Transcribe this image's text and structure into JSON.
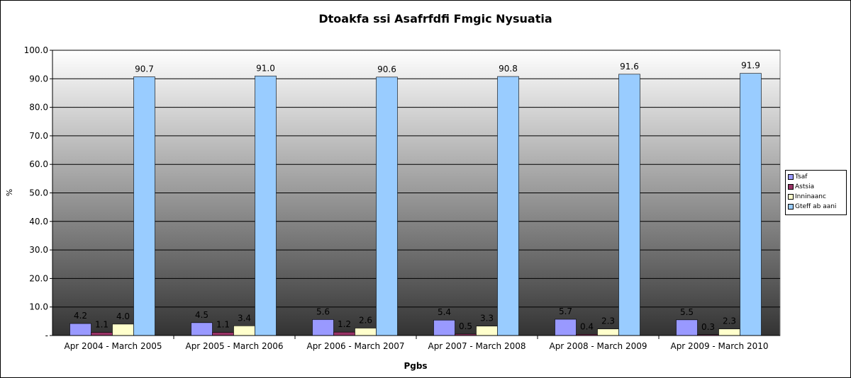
{
  "chart_data": {
    "type": "bar",
    "title": "Dtoakfa ssi Asafrfdfi Fmgic Nysuatia",
    "xlabel": "Pgbs",
    "ylabel": "%",
    "ylim": [
      0,
      100
    ],
    "yticks": [
      "-",
      "10.0",
      "20.0",
      "30.0",
      "40.0",
      "50.0",
      "60.0",
      "70.0",
      "80.0",
      "90.0",
      "100.0"
    ],
    "grid": true,
    "legend_position": "right",
    "categories": [
      "Apr 2004 - March 2005",
      "Apr 2005 - March 2006",
      "Apr 2006 - March 2007",
      "Apr 2007 - March 2008",
      "Apr 2008 - March 2009",
      "Apr 2009 - March 2010"
    ],
    "series": [
      {
        "name": "Tsaf",
        "color": "#9999ff",
        "values": [
          4.2,
          4.5,
          5.6,
          5.4,
          5.7,
          5.5
        ],
        "labels": [
          "4.2",
          "4.5",
          "5.6",
          "5.4",
          "5.7",
          "5.5"
        ]
      },
      {
        "name": "Astsia",
        "color": "#993366",
        "values": [
          1.1,
          1.1,
          1.2,
          0.5,
          0.4,
          0.3
        ],
        "labels": [
          "1.1",
          "1.1",
          "1.2",
          "0.5",
          "0.4",
          "0.3"
        ]
      },
      {
        "name": "Inninaanc",
        "color": "#ffffcc",
        "values": [
          4.0,
          3.4,
          2.6,
          3.3,
          2.3,
          2.3
        ],
        "labels": [
          "4.0",
          "3.4",
          "2.6",
          "3.3",
          "2.3",
          "2.3"
        ]
      },
      {
        "name": "Gteff ab aani",
        "color": "#99ccff",
        "values": [
          90.7,
          91.0,
          90.6,
          90.8,
          91.6,
          91.9
        ],
        "labels": [
          "90.7",
          "91.0",
          "90.6",
          "90.8",
          "91.6",
          "91.9"
        ]
      }
    ]
  }
}
